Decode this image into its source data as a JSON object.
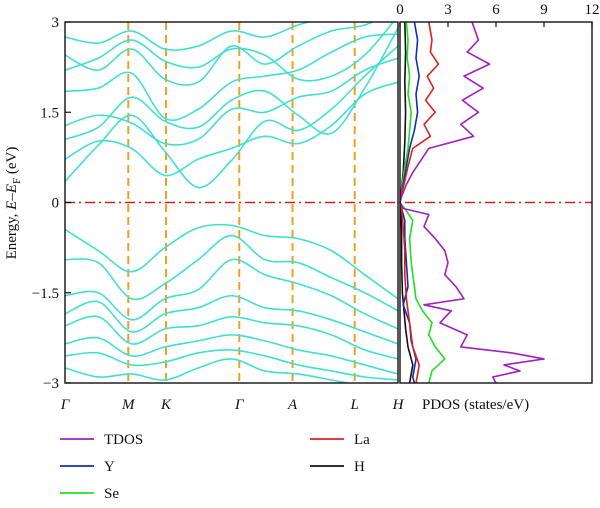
{
  "chart_data": [
    {
      "type": "line",
      "subtype": "band-structure",
      "ylabel_parts": [
        "Energy, ",
        "E",
        "–",
        "E",
        "F",
        " (eV)"
      ],
      "ylim": [
        -3,
        3
      ],
      "yticks": [
        3,
        1.5,
        0,
        -1.5,
        -3
      ],
      "ytick_labels": [
        "3",
        "1.5",
        "0",
        "−1.5",
        "−3"
      ],
      "k_points": [
        {
          "label": "Γ",
          "x": 0.0
        },
        {
          "label": "M",
          "x": 0.57
        },
        {
          "label": "K",
          "x": 0.91
        },
        {
          "label": "Γ",
          "x": 1.57
        },
        {
          "label": "A",
          "x": 2.05
        },
        {
          "label": "L",
          "x": 2.61
        },
        {
          "label": "H",
          "x": 3.0
        }
      ],
      "fermi_level": 0,
      "band_color": "#40e0d0",
      "kline_color": "#f0a020",
      "fermi_color": "#cc2222",
      "conduction_bands": [
        [
          0.72,
          1.02,
          0.9,
          0.45,
          0.72,
          0.9,
          1.1,
          0.98,
          1.28,
          1.8,
          2.0
        ],
        [
          1.28,
          1.45,
          1.32,
          0.98,
          1.05,
          1.55,
          1.5,
          1.75,
          1.85,
          2.2,
          2.4
        ],
        [
          1.85,
          1.9,
          2.15,
          1.4,
          1.55,
          2.0,
          2.1,
          2.2,
          2.5,
          2.75,
          2.8
        ],
        [
          2.45,
          2.2,
          2.55,
          2.05,
          2.0,
          2.6,
          2.3,
          2.6,
          2.85,
          2.95,
          3.2
        ],
        [
          2.75,
          2.65,
          2.85,
          2.55,
          2.6,
          2.85,
          2.75,
          2.95,
          3.1,
          3.2,
          3.3
        ],
        [
          0.35,
          0.95,
          1.45,
          0.85,
          0.25,
          0.7,
          1.35,
          1.2,
          1.55,
          2.1,
          2.6
        ],
        [
          1.05,
          1.25,
          1.75,
          1.35,
          1.25,
          1.7,
          1.85,
          1.45,
          1.15,
          1.9,
          2.9
        ],
        [
          2.2,
          2.4,
          2.7,
          2.35,
          2.25,
          2.55,
          2.45,
          2.05,
          2.1,
          2.45,
          3.1
        ]
      ],
      "valence_bands": [
        [
          -0.45,
          -0.8,
          -1.15,
          -0.75,
          -0.42,
          -0.38,
          -0.55,
          -0.6,
          -0.8,
          -1.2,
          -1.6
        ],
        [
          -0.95,
          -1.0,
          -1.6,
          -1.35,
          -0.95,
          -0.55,
          -0.95,
          -1.0,
          -1.25,
          -1.5,
          -1.8
        ],
        [
          -1.55,
          -1.5,
          -1.95,
          -1.6,
          -1.45,
          -0.95,
          -1.2,
          -1.35,
          -1.55,
          -1.85,
          -2.1
        ],
        [
          -1.85,
          -1.65,
          -2.15,
          -1.85,
          -1.75,
          -1.55,
          -1.75,
          -1.8,
          -1.95,
          -2.15,
          -2.35
        ],
        [
          -2.05,
          -1.9,
          -2.35,
          -2.1,
          -2.05,
          -1.9,
          -2.0,
          -2.05,
          -2.2,
          -2.45,
          -2.6
        ],
        [
          -2.35,
          -2.25,
          -2.55,
          -2.4,
          -2.3,
          -2.2,
          -2.3,
          -2.45,
          -2.55,
          -2.7,
          -2.85
        ],
        [
          -2.55,
          -2.5,
          -2.7,
          -2.65,
          -2.5,
          -2.45,
          -2.55,
          -2.7,
          -2.8,
          -2.9,
          -2.95
        ],
        [
          -2.75,
          -2.9,
          -2.85,
          -2.95,
          -2.75,
          -2.6,
          -2.8,
          -2.85,
          -2.95,
          -3.05,
          -3.1
        ]
      ]
    },
    {
      "type": "line",
      "subtype": "density-of-states",
      "xlabel": "PDOS (states/eV)",
      "xlim": [
        0,
        12
      ],
      "xticks": [
        0,
        3,
        6,
        9,
        12
      ],
      "ylim": [
        -3,
        3
      ],
      "series": [
        {
          "name": "TDOS",
          "color": "#a020c0",
          "energy": [
            3.0,
            2.7,
            2.5,
            2.3,
            2.1,
            1.9,
            1.7,
            1.5,
            1.3,
            1.1,
            0.9,
            0.7,
            0.5,
            0.3,
            0.1,
            0.0,
            -0.1,
            -0.2,
            -0.4,
            -0.6,
            -0.8,
            -1.0,
            -1.2,
            -1.4,
            -1.6,
            -1.7,
            -1.8,
            -2.0,
            -2.2,
            -2.4,
            -2.5,
            -2.6,
            -2.7,
            -2.8,
            -2.9,
            -3.0
          ],
          "dos": [
            4.5,
            4.9,
            4.2,
            5.6,
            4.0,
            5.2,
            3.9,
            4.9,
            3.8,
            4.6,
            1.8,
            1.3,
            0.8,
            0.4,
            0.1,
            0.0,
            0.2,
            1.8,
            1.5,
            2.2,
            2.8,
            3.0,
            2.8,
            3.5,
            4.0,
            1.5,
            3.2,
            2.5,
            4.2,
            3.8,
            7.0,
            9.0,
            6.5,
            7.5,
            5.8,
            6.0
          ]
        },
        {
          "name": "Y",
          "color": "#1030b0",
          "energy": [
            3.0,
            2.7,
            2.4,
            2.1,
            1.8,
            1.5,
            1.2,
            0.9,
            0.6,
            0.3,
            0.1,
            0.0,
            -0.1,
            -0.3,
            -0.6,
            -1.0,
            -1.4,
            -1.7,
            -2.0,
            -2.3,
            -2.6,
            -2.9,
            -3.0
          ],
          "dos": [
            0.9,
            1.1,
            1.0,
            1.2,
            1.0,
            1.1,
            0.9,
            0.6,
            0.4,
            0.2,
            0.05,
            0.0,
            0.1,
            0.3,
            0.3,
            0.4,
            0.5,
            0.2,
            0.6,
            0.7,
            1.0,
            0.8,
            0.9
          ]
        },
        {
          "name": "Se",
          "color": "#20e020",
          "energy": [
            3.0,
            2.7,
            2.4,
            2.1,
            1.8,
            1.5,
            1.2,
            0.9,
            0.6,
            0.3,
            0.1,
            0.0,
            -0.1,
            -0.3,
            -0.6,
            -1.0,
            -1.4,
            -1.6,
            -1.8,
            -2.0,
            -2.2,
            -2.4,
            -2.6,
            -2.8,
            -3.0
          ],
          "dos": [
            0.4,
            0.5,
            0.45,
            0.6,
            0.5,
            0.7,
            0.6,
            0.5,
            0.3,
            0.15,
            0.05,
            0.0,
            0.3,
            0.8,
            0.6,
            0.7,
            0.9,
            1.0,
            1.4,
            2.0,
            1.8,
            2.2,
            2.8,
            2.0,
            1.8
          ]
        },
        {
          "name": "La",
          "color": "#e02020",
          "energy": [
            3.0,
            2.7,
            2.5,
            2.3,
            2.1,
            1.9,
            1.7,
            1.5,
            1.3,
            1.1,
            0.9,
            0.6,
            0.3,
            0.1,
            0.0,
            -0.1,
            -0.4,
            -0.8,
            -1.2,
            -1.6,
            -2.0,
            -2.4,
            -2.7,
            -3.0
          ],
          "dos": [
            1.8,
            2.0,
            1.9,
            2.4,
            1.7,
            2.1,
            1.6,
            2.2,
            1.5,
            1.9,
            0.8,
            0.5,
            0.25,
            0.05,
            0.0,
            0.1,
            0.2,
            0.3,
            0.3,
            0.4,
            0.6,
            0.8,
            1.2,
            1.0
          ]
        },
        {
          "name": "H",
          "color": "#111111",
          "energy": [
            3.0,
            2.5,
            2.0,
            1.5,
            1.0,
            0.5,
            0.1,
            0.0,
            -0.1,
            -0.5,
            -1.0,
            -1.5,
            -1.8,
            -2.1,
            -2.4,
            -2.7,
            -3.0
          ],
          "dos": [
            0.3,
            0.35,
            0.3,
            0.35,
            0.3,
            0.2,
            0.05,
            0.0,
            0.05,
            0.1,
            0.1,
            0.15,
            0.25,
            0.35,
            0.5,
            0.8,
            0.6
          ]
        }
      ],
      "legend": {
        "placement": "bottom",
        "columns": [
          [
            "TDOS",
            "Y",
            "Se"
          ],
          [
            "La",
            "H"
          ]
        ]
      }
    }
  ]
}
